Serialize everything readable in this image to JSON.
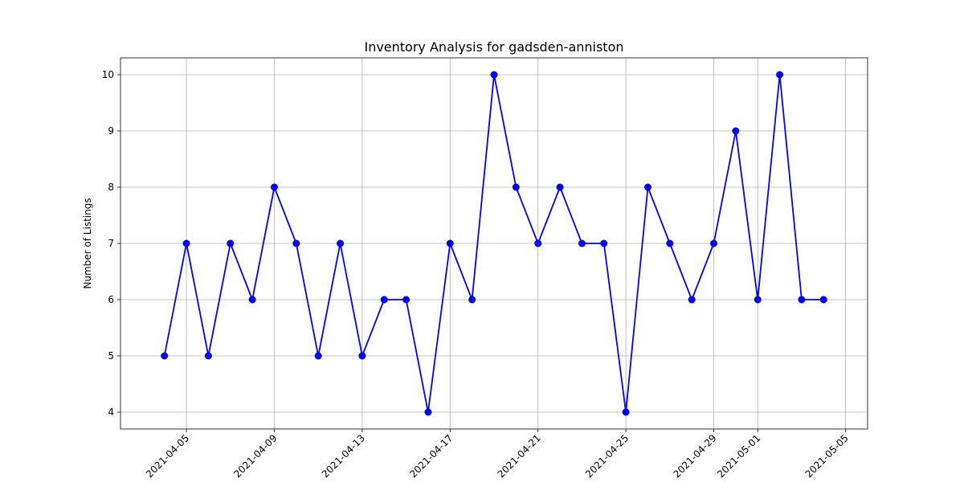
{
  "chart_data": {
    "type": "line",
    "title": "Inventory Analysis for gadsden-anniston",
    "xlabel": "",
    "ylabel": "Number of Listings",
    "grid": true,
    "x_range": [
      "2021-04-02",
      "2021-05-06"
    ],
    "y_range": [
      3.7,
      10.3
    ],
    "y_ticks": [
      4,
      5,
      6,
      7,
      8,
      9,
      10
    ],
    "x_ticks": [
      "2021-04-05",
      "2021-04-09",
      "2021-04-13",
      "2021-04-17",
      "2021-04-21",
      "2021-04-25",
      "2021-04-29",
      "2021-05-01",
      "2021-05-05"
    ],
    "color": "#0000ff",
    "series": [
      {
        "x": [
          "2021-04-04",
          "2021-04-05",
          "2021-04-06",
          "2021-04-07",
          "2021-04-08",
          "2021-04-09",
          "2021-04-10",
          "2021-04-11",
          "2021-04-12",
          "2021-04-13",
          "2021-04-14",
          "2021-04-15",
          "2021-04-16",
          "2021-04-17",
          "2021-04-18",
          "2021-04-19",
          "2021-04-20",
          "2021-04-21",
          "2021-04-22",
          "2021-04-23",
          "2021-04-24",
          "2021-04-25",
          "2021-04-26",
          "2021-04-27",
          "2021-04-28",
          "2021-04-29",
          "2021-04-30",
          "2021-05-01",
          "2021-05-02",
          "2021-05-03",
          "2021-05-04"
        ],
        "values": [
          5,
          7,
          5,
          7,
          6,
          8,
          7,
          5,
          7,
          5,
          6,
          6,
          4,
          7,
          6,
          10,
          8,
          7,
          8,
          7,
          7,
          4,
          8,
          7,
          6,
          7,
          9,
          6,
          10,
          6,
          6
        ]
      }
    ]
  }
}
